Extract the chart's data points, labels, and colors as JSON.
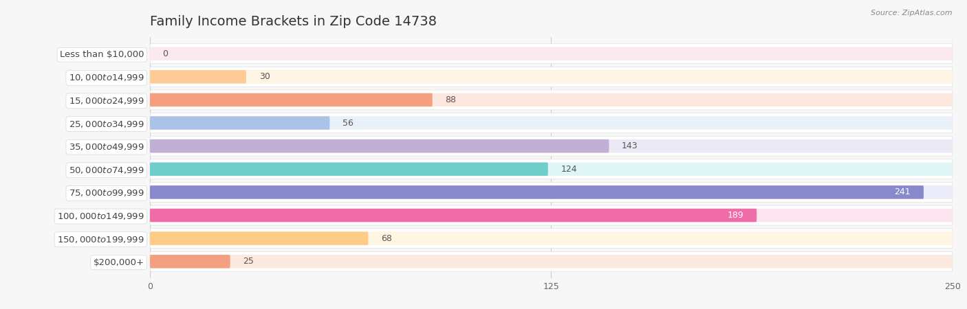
{
  "title": "Family Income Brackets in Zip Code 14738",
  "source": "Source: ZipAtlas.com",
  "categories": [
    "Less than $10,000",
    "$10,000 to $14,999",
    "$15,000 to $24,999",
    "$25,000 to $34,999",
    "$35,000 to $49,999",
    "$50,000 to $74,999",
    "$75,000 to $99,999",
    "$100,000 to $149,999",
    "$150,000 to $199,999",
    "$200,000+"
  ],
  "values": [
    0,
    30,
    88,
    56,
    143,
    124,
    241,
    189,
    68,
    25
  ],
  "bar_colors": [
    "#f48fb1",
    "#ffcc99",
    "#f4a080",
    "#aac4e8",
    "#c3aed6",
    "#6ecfca",
    "#8888cc",
    "#f06ca8",
    "#ffcc88",
    "#f4a080"
  ],
  "bar_bg_colors": [
    "#fce8f0",
    "#fff5e6",
    "#fde8e0",
    "#eaf0f8",
    "#ede8f5",
    "#e0f5f5",
    "#eaeaf8",
    "#fce4ef",
    "#fff5e0",
    "#fde8e0"
  ],
  "xlim": [
    0,
    250
  ],
  "xticks": [
    0,
    125,
    250
  ],
  "background_color": "#f7f7f7",
  "title_fontsize": 14,
  "label_fontsize": 9.5,
  "value_fontsize": 9,
  "bar_height": 0.58
}
